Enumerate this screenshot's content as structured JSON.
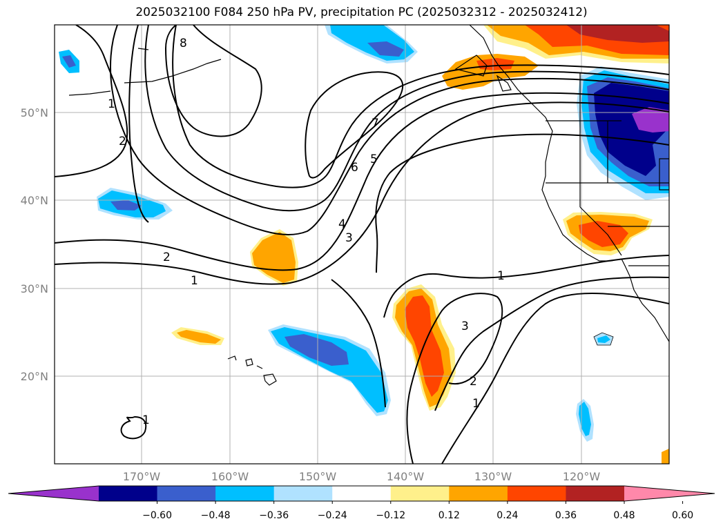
{
  "title": "2025032100 F084 250 hPa PV, precipitation PC (2025032312 - 2025032412)",
  "lat_labels": [
    "50°N",
    "40°N",
    "30°N",
    "20°N"
  ],
  "lon_labels": [
    "170°W",
    "160°W",
    "150°W",
    "140°W",
    "130°W",
    "120°W"
  ],
  "colorbar": {
    "ticks": [
      "−0.60",
      "−0.48",
      "−0.36",
      "−0.24",
      "−0.12",
      "0.12",
      "0.24",
      "0.36",
      "0.48",
      "0.60"
    ],
    "colors": [
      "#9932cc",
      "#00008b",
      "#3a5fcd",
      "#00bfff",
      "#b0e2ff",
      "#ffffff",
      "#fff08b",
      "#ffa500",
      "#ff4500",
      "#b22222",
      "#ff88aa"
    ]
  },
  "contour_labels": [
    "8",
    "1",
    "2",
    "7",
    "6",
    "5",
    "4",
    "3",
    "2",
    "1",
    "1",
    "3",
    "2",
    "1",
    "1"
  ],
  "colors": {
    "contour": "#000000",
    "grid": "#b0b0b0",
    "coast": "#000000"
  }
}
